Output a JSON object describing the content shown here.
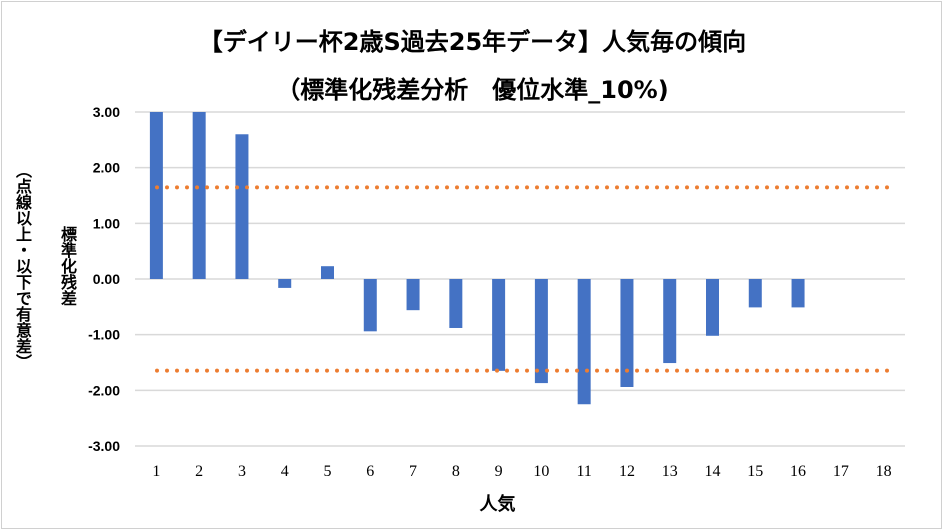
{
  "chart_data": {
    "type": "bar",
    "title": "【デイリー杯2歳S過去25年データ】人気毎の傾向",
    "subtitle": "（標準化残差分析　優位水準_10%)",
    "xlabel": "人気",
    "ylabel": "標準化残差",
    "ylabel2": "（点線以上・以下で有意差）",
    "categories": [
      "1",
      "2",
      "3",
      "4",
      "5",
      "6",
      "7",
      "8",
      "9",
      "10",
      "11",
      "12",
      "13",
      "14",
      "15",
      "16",
      "17",
      "18"
    ],
    "values": [
      3.0,
      3.0,
      2.6,
      -0.16,
      0.23,
      -0.94,
      -0.56,
      -0.88,
      -1.65,
      -1.87,
      -2.25,
      -1.94,
      -1.51,
      -1.02,
      -0.51,
      -0.51,
      0,
      0
    ],
    "ylim": [
      -3,
      3
    ],
    "yticks": [
      "3.00",
      "2.00",
      "1.00",
      "0.00",
      "-1.00",
      "-2.00",
      "-3.00"
    ],
    "ytick_values": [
      3,
      2,
      1,
      0,
      -1,
      -2,
      -3
    ],
    "threshold_lines": [
      1.645,
      -1.645
    ],
    "grid": true,
    "colors": {
      "bar": "#4472C4",
      "threshold": "#ED7D31",
      "grid": "#D9D9D9"
    }
  }
}
